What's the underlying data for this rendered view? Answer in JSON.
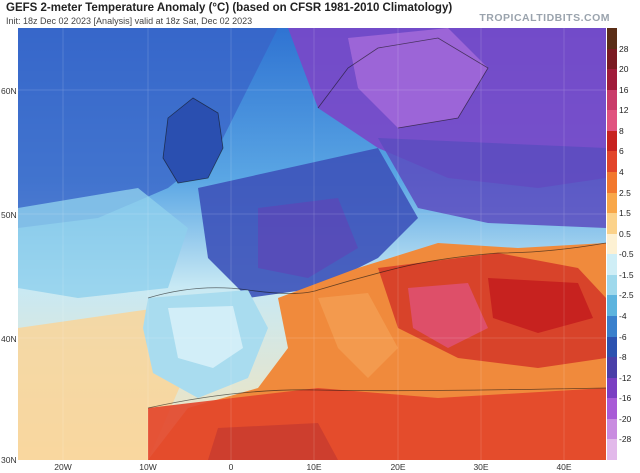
{
  "header": {
    "title": "GEFS 2-meter Temperature Anomaly (°C) (based on CFSR 1981-2010 Climatology)",
    "subtitle": "Init: 18z Dec 02 2023   [Analysis]   valid at 18z Sat, Dec 02 2023",
    "brand": "TROPICALTIDBITS.COM"
  },
  "map": {
    "lat_labels": [
      "60N",
      "50N",
      "40N",
      "30N"
    ],
    "lon_labels": [
      "20W",
      "10W",
      "0",
      "10E",
      "20E",
      "30E",
      "40E"
    ]
  },
  "colorbar": {
    "labels": [
      "28",
      "20",
      "16",
      "12",
      "8",
      "6",
      "4",
      "2.5",
      "1.5",
      "0.5",
      "-0.5",
      "-1.5",
      "-2.5",
      "-4",
      "-6",
      "-8",
      "-12",
      "-16",
      "-20",
      "-28"
    ],
    "colors": [
      "#5a2d16",
      "#7a1a22",
      "#a01c3a",
      "#c93c6a",
      "#e0537f",
      "#c7221f",
      "#e2452a",
      "#f2782e",
      "#f8a749",
      "#fbd28a",
      "#fdf1d3",
      "#cfeef6",
      "#9fd9ec",
      "#5db4de",
      "#3a80cc",
      "#2c52b0",
      "#4a3fa8",
      "#7a3fc2",
      "#a85bd6",
      "#c98ce0",
      "#e2b9ea"
    ]
  }
}
